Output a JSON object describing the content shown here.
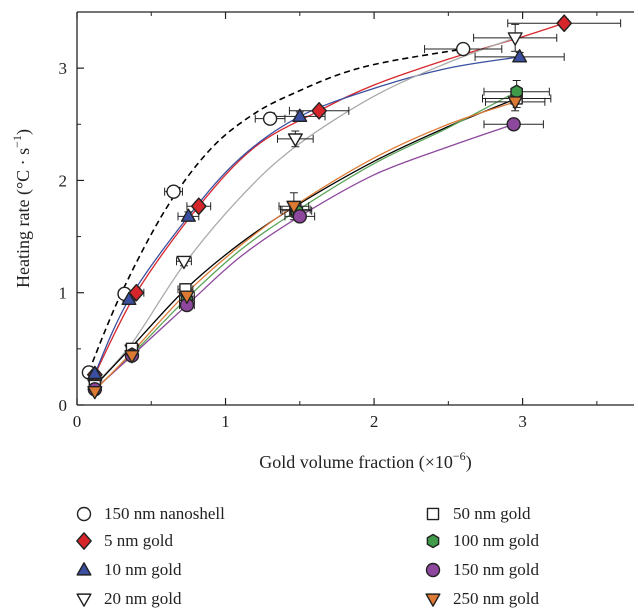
{
  "chart_data": {
    "type": "scatter",
    "xlabel": "Gold volume fraction (×10",
    "xlabel_sup": "−6",
    "xlabel_close": ")",
    "ylabel": "Heating rate (°C · s",
    "ylabel_sup": "−1",
    "ylabel_close": ")",
    "xlim": [
      0,
      3.75
    ],
    "ylim": [
      0,
      3.5
    ],
    "xticks": [
      "0",
      "1",
      "2",
      "3"
    ],
    "yticks": [
      "0",
      "1",
      "2",
      "3"
    ],
    "grid": false,
    "legend_position": "bottom",
    "series": [
      {
        "name": "150 nm nanoshell",
        "marker": "circle",
        "fill": "#ffffff",
        "line_color": "#000000",
        "line_style": "dashed",
        "x": [
          0.08,
          0.32,
          0.65,
          1.3,
          2.6
        ],
        "y": [
          0.29,
          0.99,
          1.9,
          2.55,
          3.17
        ],
        "xerr": [
          0.02,
          0.04,
          0.06,
          0.1,
          0.26
        ],
        "yerr": [
          0.02,
          0.03,
          0.03,
          0.03,
          0.04
        ],
        "fit_x": [
          0.08,
          0.3,
          0.6,
          0.9,
          1.2,
          1.5,
          1.8,
          2.1,
          2.6
        ],
        "fit_y": [
          0.3,
          1.0,
          1.75,
          2.28,
          2.6,
          2.8,
          2.96,
          3.06,
          3.17
        ]
      },
      {
        "name": "5 nm gold",
        "marker": "diamond",
        "fill": "#d7262b",
        "line_color": "#d7262b",
        "x": [
          0.12,
          0.4,
          0.82,
          1.63,
          3.28
        ],
        "y": [
          0.27,
          1.0,
          1.77,
          2.62,
          3.4
        ],
        "xerr": [
          0.02,
          0.05,
          0.08,
          0.2,
          0.38
        ],
        "yerr": [
          0.02,
          0.03,
          0.04,
          0.03,
          0.04
        ],
        "fit_x": [
          0.12,
          0.4,
          0.82,
          1.2,
          1.63,
          2.0,
          2.5,
          3.0,
          3.28
        ],
        "fit_y": [
          0.27,
          1.0,
          1.77,
          2.3,
          2.62,
          2.85,
          3.08,
          3.28,
          3.4
        ]
      },
      {
        "name": "10 nm gold",
        "marker": "triangle-up",
        "fill": "#3a4fa0",
        "line_color": "#3a4fa0",
        "x": [
          0.12,
          0.35,
          0.75,
          1.5,
          2.98
        ],
        "y": [
          0.28,
          0.94,
          1.68,
          2.57,
          3.1
        ],
        "xerr": [
          0.02,
          0.04,
          0.07,
          0.17,
          0.3
        ],
        "yerr": [
          0.02,
          0.03,
          0.04,
          0.04,
          0.04
        ],
        "fit_x": [
          0.12,
          0.35,
          0.75,
          1.1,
          1.5,
          2.0,
          2.5,
          2.98
        ],
        "fit_y": [
          0.28,
          0.94,
          1.68,
          2.2,
          2.57,
          2.82,
          3.0,
          3.1
        ]
      },
      {
        "name": "20 nm gold",
        "marker": "triangle-down",
        "fill": "#ffffff",
        "line_color": "#aaaaaa",
        "x": [
          0.12,
          0.37,
          0.72,
          1.47,
          2.95
        ],
        "y": [
          0.18,
          0.49,
          1.28,
          2.37,
          3.27
        ],
        "xerr": [
          0.02,
          0.03,
          0.05,
          0.12,
          0.28
        ],
        "yerr": [
          0.02,
          0.03,
          0.04,
          0.07,
          0.12
        ],
        "fit_x": [
          0.12,
          0.37,
          0.72,
          1.1,
          1.47,
          2.0,
          2.5,
          2.95
        ],
        "fit_y": [
          0.18,
          0.55,
          1.25,
          1.85,
          2.3,
          2.75,
          3.05,
          3.27
        ]
      },
      {
        "name": "50 nm gold",
        "marker": "square",
        "fill": "#ffffff",
        "line_color": "#000000",
        "x": [
          0.12,
          0.37,
          0.73,
          1.47,
          2.96
        ],
        "y": [
          0.17,
          0.5,
          1.03,
          1.74,
          2.73
        ],
        "xerr": [
          0.02,
          0.03,
          0.05,
          0.1,
          0.23
        ],
        "yerr": [
          0.02,
          0.03,
          0.05,
          0.07,
          0.08
        ],
        "fit_x": [
          0.12,
          0.37,
          0.73,
          1.1,
          1.47,
          2.0,
          2.5,
          2.96
        ],
        "fit_y": [
          0.17,
          0.52,
          1.03,
          1.44,
          1.77,
          2.17,
          2.48,
          2.73
        ]
      },
      {
        "name": "100 nm gold",
        "marker": "hexagon",
        "fill": "#3f9b4a",
        "line_color": "#5aa457",
        "x": [
          0.12,
          0.37,
          0.74,
          1.48,
          2.96
        ],
        "y": [
          0.14,
          0.45,
          0.93,
          1.73,
          2.79
        ],
        "xerr": [
          0.02,
          0.03,
          0.05,
          0.1,
          0.22
        ],
        "yerr": [
          0.02,
          0.03,
          0.04,
          0.06,
          0.1
        ],
        "fit_x": [
          0.12,
          0.37,
          0.74,
          1.1,
          1.48,
          2.0,
          2.5,
          2.96
        ],
        "fit_y": [
          0.14,
          0.45,
          0.95,
          1.38,
          1.73,
          2.15,
          2.47,
          2.79
        ]
      },
      {
        "name": "150 nm gold",
        "marker": "circle",
        "fill": "#8d479c",
        "line_color": "#8d479c",
        "x": [
          0.12,
          0.37,
          0.74,
          1.5,
          2.94
        ],
        "y": [
          0.14,
          0.44,
          0.89,
          1.68,
          2.5
        ],
        "xerr": [
          0.02,
          0.03,
          0.05,
          0.1,
          0.2
        ],
        "yerr": [
          0.02,
          0.03,
          0.03,
          0.04,
          0.04
        ],
        "fit_x": [
          0.12,
          0.37,
          0.74,
          1.1,
          1.5,
          2.0,
          2.5,
          2.94
        ],
        "fit_y": [
          0.14,
          0.44,
          0.89,
          1.32,
          1.68,
          2.05,
          2.3,
          2.5
        ]
      },
      {
        "name": "250 nm gold",
        "marker": "triangle-down",
        "fill": "#dc7a34",
        "line_color": "#dc7a34",
        "x": [
          0.12,
          0.37,
          0.74,
          1.46,
          2.95
        ],
        "y": [
          0.12,
          0.44,
          0.97,
          1.77,
          2.7
        ],
        "xerr": [
          0.02,
          0.03,
          0.05,
          0.1,
          0.2
        ],
        "yerr": [
          0.02,
          0.03,
          0.04,
          0.12,
          0.08
        ],
        "fit_x": [
          0.12,
          0.37,
          0.74,
          1.1,
          1.46,
          2.0,
          2.5,
          2.95
        ],
        "fit_y": [
          0.13,
          0.47,
          1.0,
          1.42,
          1.77,
          2.2,
          2.5,
          2.7
        ]
      }
    ]
  }
}
